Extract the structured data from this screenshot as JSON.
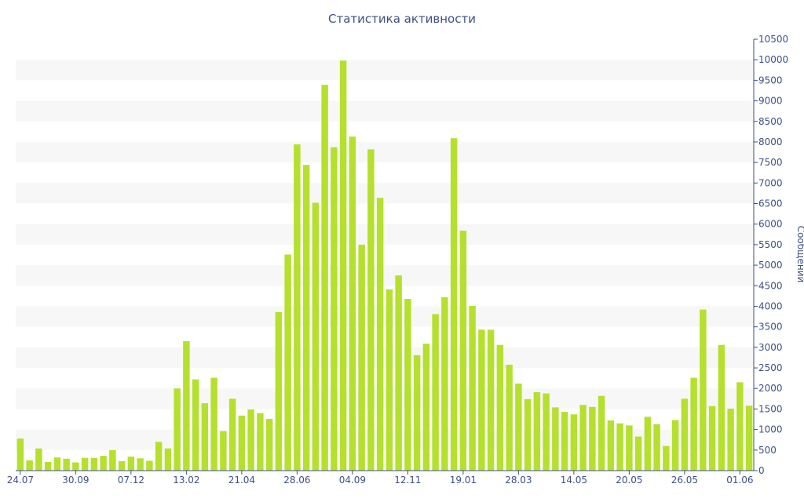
{
  "chart_data": {
    "type": "bar",
    "title": "Статистика активности",
    "xlabel": "",
    "ylabel": "Сообщений",
    "y_axis_side": "right",
    "ylim": [
      0,
      10500
    ],
    "y_ticks": [
      0,
      500,
      1000,
      1500,
      2000,
      2500,
      3000,
      3500,
      4000,
      4500,
      5000,
      5500,
      6000,
      6500,
      7000,
      7500,
      8000,
      8500,
      9000,
      9500,
      10000,
      10500
    ],
    "x_tick_labels": [
      {
        "label": "24.07",
        "index": 0
      },
      {
        "label": "30.09",
        "index": 6
      },
      {
        "label": "07.12",
        "index": 12
      },
      {
        "label": "13.02",
        "index": 18
      },
      {
        "label": "21.04",
        "index": 24
      },
      {
        "label": "28.06",
        "index": 30
      },
      {
        "label": "04.09",
        "index": 36
      },
      {
        "label": "12.11",
        "index": 42
      },
      {
        "label": "19.01",
        "index": 48
      },
      {
        "label": "28.03",
        "index": 54
      },
      {
        "label": "14.05",
        "index": 60
      },
      {
        "label": "20.05",
        "index": 66
      },
      {
        "label": "26.05",
        "index": 72
      },
      {
        "label": "01.06",
        "index": 78
      }
    ],
    "grid": "alternating-bands",
    "series": [
      {
        "color": "#b5e02e",
        "values": [
          780,
          250,
          540,
          210,
          320,
          290,
          200,
          310,
          310,
          360,
          500,
          230,
          340,
          300,
          240,
          700,
          540,
          2000,
          3150,
          2220,
          1640,
          2260,
          960,
          1750,
          1340,
          1490,
          1400,
          1260,
          3860,
          5260,
          7940,
          7440,
          6520,
          9390,
          7870,
          9980,
          8130,
          5500,
          7820,
          6640,
          4410,
          4750,
          4180,
          2810,
          3090,
          3810,
          4220,
          8090,
          5840,
          4010,
          3430,
          3430,
          3060,
          2580,
          2120,
          1740,
          1910,
          1880,
          1540,
          1430,
          1370,
          1600,
          1550,
          1820,
          1220,
          1150,
          1100,
          830,
          1310,
          1130,
          600,
          1230,
          1750,
          2260,
          3920,
          1570,
          3060,
          1510,
          2150,
          1580
        ]
      }
    ]
  }
}
